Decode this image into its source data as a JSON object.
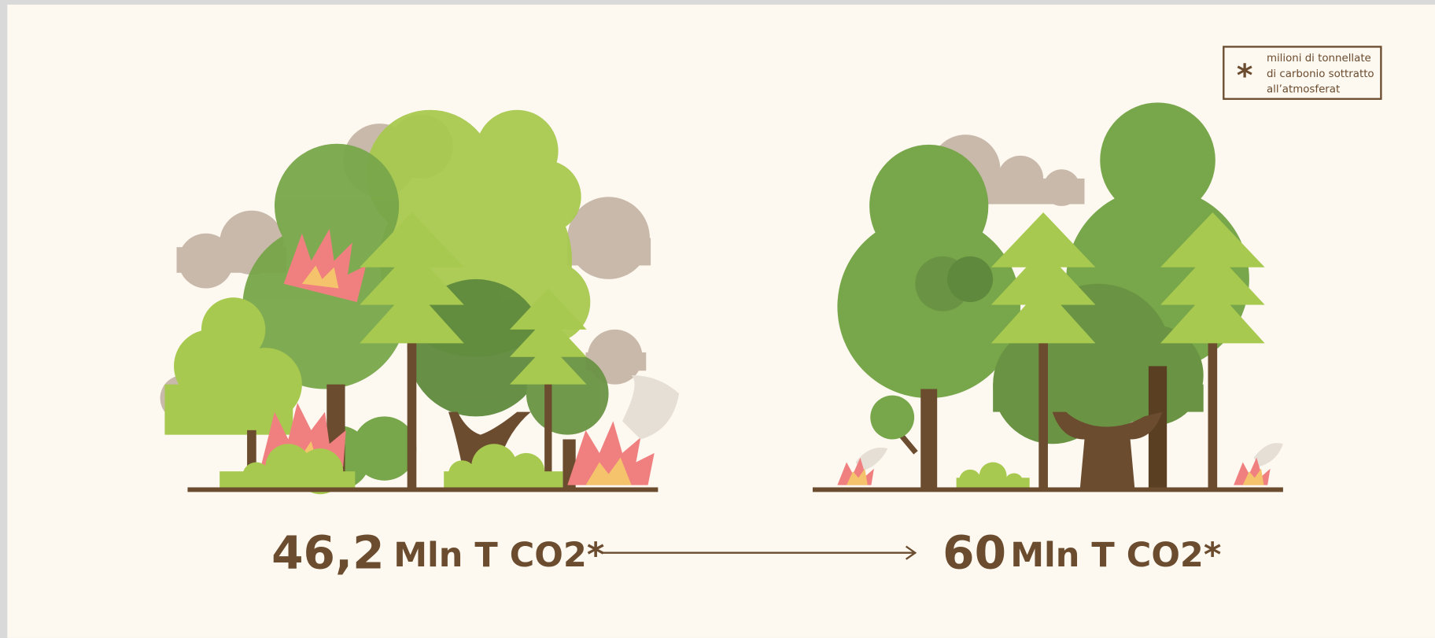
{
  "legend": {
    "symbol": "*",
    "lines": [
      "milioni di tonnellate",
      "di carbonio sottratto",
      "all’atmosferat"
    ]
  },
  "before": {
    "value": "46,2",
    "unit": "Mln T CO2*"
  },
  "after": {
    "value": "60",
    "unit": "Mln T CO2*"
  }
}
